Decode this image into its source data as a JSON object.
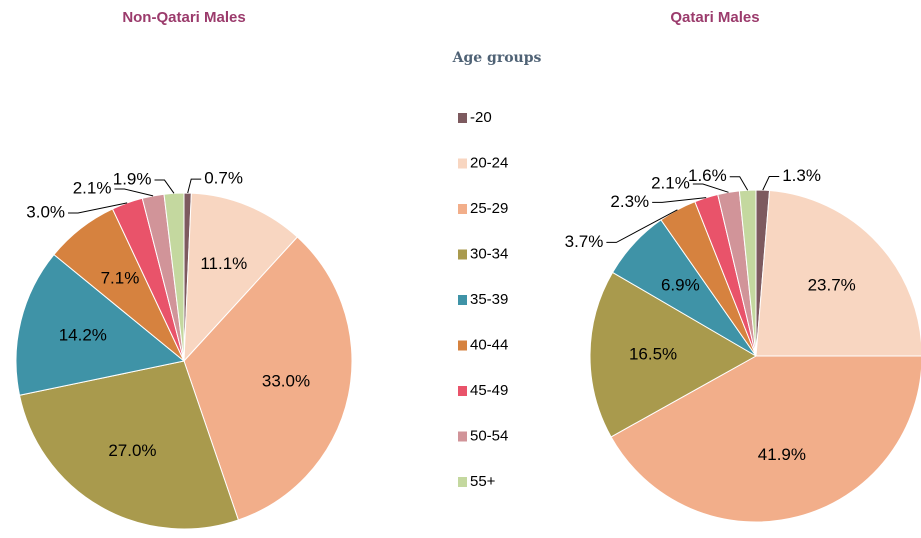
{
  "legend": {
    "title": "Age groups",
    "categories": [
      "-20",
      "20-24",
      "25-29",
      "30-34",
      "35-39",
      "40-44",
      "45-49",
      "50-54",
      "55+"
    ],
    "colors": [
      "#7d5a5f",
      "#f8d6c1",
      "#f2ae8a",
      "#a99a4d",
      "#3f93a7",
      "#d6823f",
      "#e9536a",
      "#d19499",
      "#c4d89f"
    ]
  },
  "chart_data": [
    {
      "type": "pie",
      "title": "Non-Qatari Males",
      "values": [
        0.7,
        11.1,
        33.0,
        27.0,
        14.2,
        7.1,
        3.0,
        2.1,
        1.9
      ],
      "value_labels": [
        "0.7%",
        "11.1%",
        "33.0%",
        "27.0%",
        "14.2%",
        "7.1%",
        "3.0%",
        "2.1%",
        "1.9%"
      ]
    },
    {
      "type": "pie",
      "title": "Qatari Males",
      "values": [
        1.3,
        23.7,
        41.9,
        16.5,
        6.9,
        3.7,
        2.3,
        2.1,
        1.6
      ],
      "value_labels": [
        "1.3%",
        "23.7%",
        "41.9%",
        "16.5%",
        "6.9%",
        "3.7%",
        "2.3%",
        "2.1%",
        "1.6%"
      ]
    }
  ]
}
